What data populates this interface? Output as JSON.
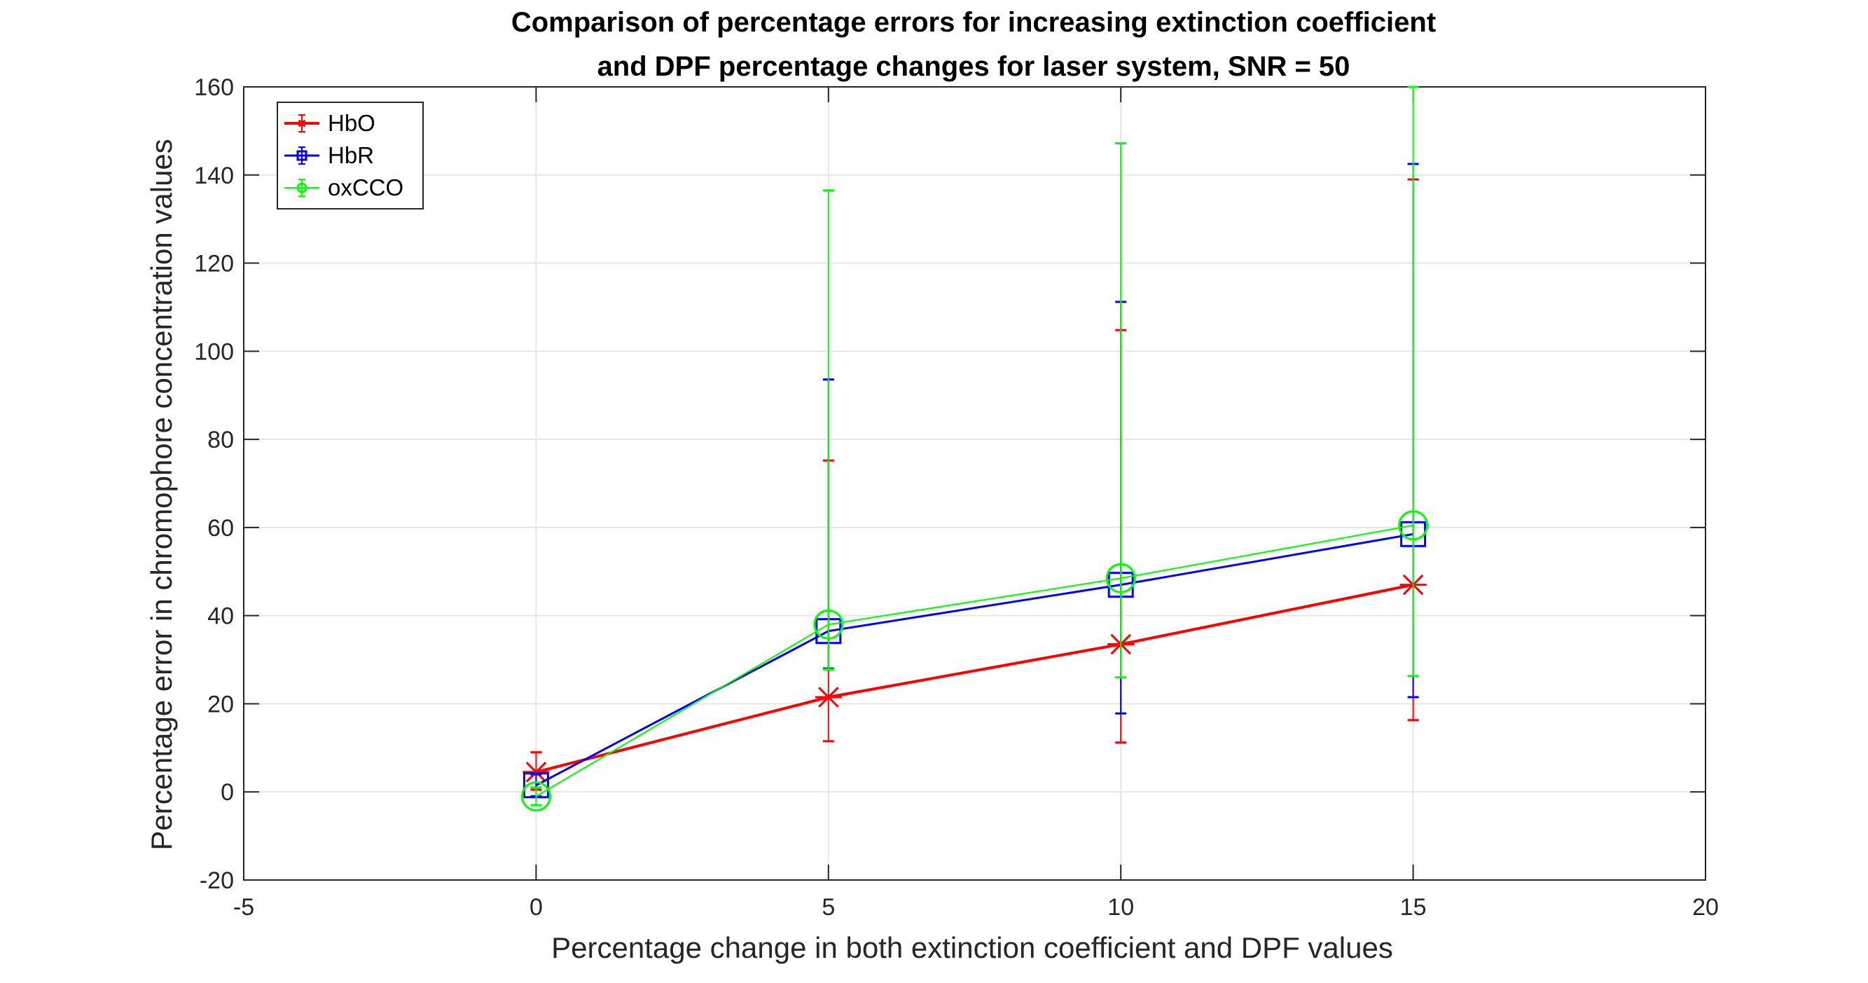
{
  "chart_data": {
    "type": "line",
    "title": [
      "Comparison of percentage errors for increasing extinction coefficient",
      "and DPF percentage changes for laser system, SNR = 50"
    ],
    "xlabel": "Percentage change in both extinction coefficient and DPF values",
    "ylabel": "Percentage error in chromophore concentration values",
    "xlim": [
      -5,
      20
    ],
    "ylim": [
      -20,
      160
    ],
    "xticks": [
      -5,
      0,
      5,
      10,
      15,
      20
    ],
    "yticks": [
      -20,
      0,
      20,
      40,
      60,
      80,
      100,
      120,
      140,
      160
    ],
    "grid": true,
    "legend_position": "top-left",
    "x": [
      0,
      5,
      10,
      15
    ],
    "series": [
      {
        "name": "HbO",
        "color": "#ff0000",
        "marker": "asterisk",
        "values": [
          4.5,
          21.5,
          33.5,
          47
        ],
        "error_lower": [
          0.5,
          11.5,
          11.2,
          16.3
        ],
        "error_upper": [
          9,
          75.2,
          104.8,
          139
        ]
      },
      {
        "name": "HbR",
        "color": "#0000ff",
        "marker": "square",
        "values": [
          1.5,
          36.5,
          47,
          58.5
        ],
        "error_lower": [
          -1,
          28,
          17.8,
          21.5
        ],
        "error_upper": [
          4,
          93.6,
          111.2,
          142.5
        ]
      },
      {
        "name": "oxCCO",
        "color": "#00ff00",
        "marker": "circle",
        "values": [
          -1,
          38,
          48.5,
          60.5
        ],
        "error_lower": [
          -3,
          27.8,
          26,
          26.3
        ],
        "error_upper": [
          1,
          136.5,
          147.2,
          160
        ]
      }
    ]
  }
}
